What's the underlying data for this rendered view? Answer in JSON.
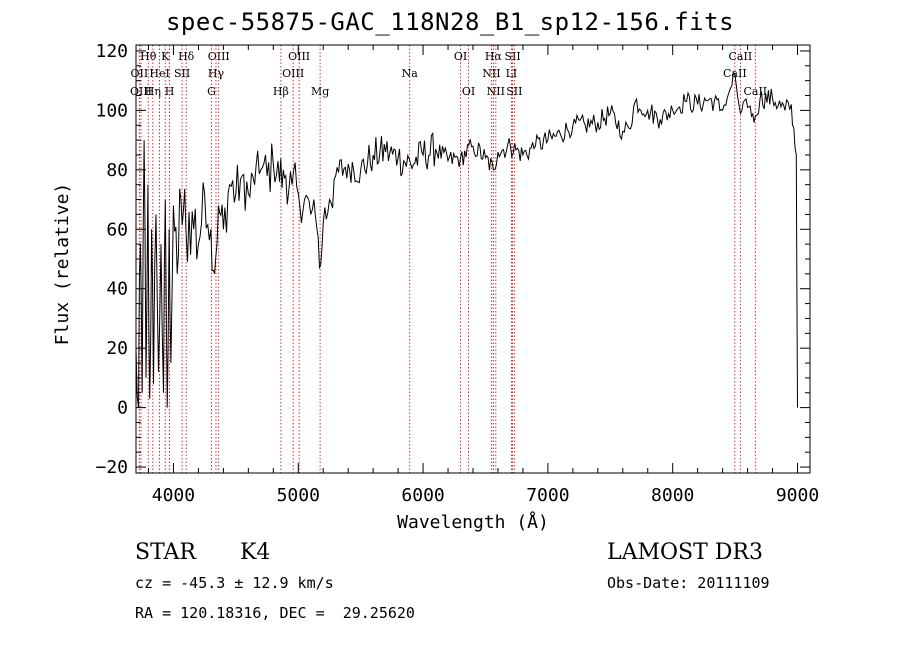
{
  "title": "spec-55875-GAC_118N28_B1_sp12-156.fits",
  "info": {
    "object_class": "STAR",
    "subclass": "K4",
    "survey": "LAMOST DR3",
    "cz": "cz = -45.3 ± 12.9 km/s",
    "obs_date": "Obs-Date: 20111109",
    "coords": "RA = 120.18316, DEC =  29.25620"
  },
  "chart_data": {
    "type": "line",
    "title": "spec-55875-GAC_118N28_B1_sp12-156.fits",
    "xlabel": "Wavelength (Å)",
    "ylabel": "Flux (relative)",
    "xlim": [
      3700,
      9100
    ],
    "ylim": [
      -22,
      122
    ],
    "xticks": [
      4000,
      5000,
      6000,
      7000,
      8000,
      9000
    ],
    "yticks": [
      -20,
      0,
      20,
      40,
      60,
      80,
      100,
      120
    ],
    "series": [
      {
        "name": "flux",
        "x": [
          3700,
          3720,
          3735,
          3750,
          3765,
          3780,
          3795,
          3810,
          3825,
          3840,
          3860,
          3880,
          3900,
          3920,
          3935,
          3950,
          3965,
          3980,
          4000,
          4030,
          4060,
          4100,
          4150,
          4200,
          4250,
          4300,
          4330,
          4360,
          4400,
          4450,
          4500,
          4550,
          4600,
          4650,
          4700,
          4750,
          4800,
          4850,
          4880,
          4900,
          4950,
          5000,
          5050,
          5100,
          5150,
          5180,
          5200,
          5250,
          5300,
          5400,
          5500,
          5600,
          5700,
          5800,
          5900,
          6000,
          6100,
          6200,
          6300,
          6400,
          6500,
          6563,
          6600,
          6700,
          6800,
          6900,
          7000,
          7100,
          7200,
          7300,
          7400,
          7500,
          7600,
          7650,
          7700,
          7800,
          7900,
          8000,
          8100,
          8200,
          8300,
          8400,
          8450,
          8498,
          8542,
          8600,
          8662,
          8700,
          8800,
          8900,
          8950,
          8990,
          9000
        ],
        "y": [
          20,
          0,
          55,
          5,
          90,
          10,
          75,
          3,
          60,
          8,
          65,
          12,
          55,
          5,
          70,
          0,
          60,
          15,
          68,
          45,
          70,
          60,
          66,
          55,
          72,
          60,
          45,
          68,
          60,
          75,
          72,
          78,
          72,
          75,
          80,
          78,
          82,
          76,
          80,
          78,
          75,
          72,
          70,
          65,
          60,
          48,
          62,
          70,
          78,
          82,
          80,
          85,
          86,
          84,
          82,
          85,
          87,
          83,
          84,
          88,
          84,
          80,
          86,
          88,
          85,
          88,
          90,
          92,
          95,
          95,
          96,
          99,
          93,
          94,
          103,
          100,
          97,
          100,
          103,
          102,
          104,
          100,
          106,
          112,
          99,
          101,
          98,
          104,
          104,
          100,
          102,
          85,
          0
        ]
      }
    ],
    "line_markers": [
      {
        "label": "Hθ",
        "x": 3798,
        "row": 1
      },
      {
        "label": "OII",
        "x": 3727,
        "row": 2
      },
      {
        "label": "OIII",
        "x": 3740,
        "row": 3
      },
      {
        "label": "K",
        "x": 3934,
        "row": 1
      },
      {
        "label": "HeI",
        "x": 3889,
        "row": 2
      },
      {
        "label": "Hη",
        "x": 3835,
        "row": 3
      },
      {
        "label": "Hδ",
        "x": 4102,
        "row": 1
      },
      {
        "label": "SII",
        "x": 4069,
        "row": 2
      },
      {
        "label": "H",
        "x": 3969,
        "row": 3
      },
      {
        "label": "OIII",
        "x": 4363,
        "row": 1
      },
      {
        "label": "Hγ",
        "x": 4341,
        "row": 2
      },
      {
        "label": "G",
        "x": 4305,
        "row": 3
      },
      {
        "label": "OIII",
        "x": 5007,
        "row": 1
      },
      {
        "label": "OIII",
        "x": 4959,
        "row": 2
      },
      {
        "label": "Hβ",
        "x": 4861,
        "row": 3
      },
      {
        "label": "Mg",
        "x": 5175,
        "row": 3
      },
      {
        "label": "Na",
        "x": 5893,
        "row": 2
      },
      {
        "label": "OI",
        "x": 6300,
        "row": 1
      },
      {
        "label": "OI",
        "x": 6364,
        "row": 3
      },
      {
        "label": "Hα",
        "x": 6563,
        "row": 1
      },
      {
        "label": "NII",
        "x": 6548,
        "row": 2
      },
      {
        "label": "NII",
        "x": 6583,
        "row": 3
      },
      {
        "label": "SII",
        "x": 6717,
        "row": 1
      },
      {
        "label": "LI",
        "x": 6708,
        "row": 2
      },
      {
        "label": "SII",
        "x": 6731,
        "row": 3
      },
      {
        "label": "CaII",
        "x": 8542,
        "row": 1
      },
      {
        "label": "CaII",
        "x": 8498,
        "row": 2
      },
      {
        "label": "CaII",
        "x": 8662,
        "row": 3
      }
    ]
  }
}
